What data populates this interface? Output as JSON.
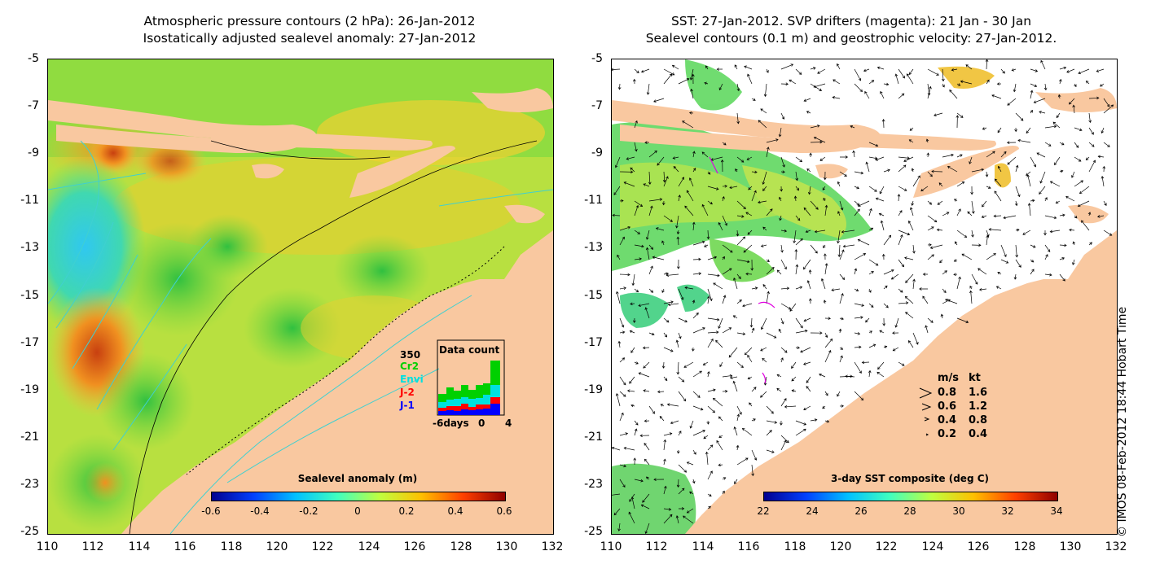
{
  "left_panel": {
    "title_line1": "Atmospheric pressure contours (2 hPa): 26-Jan-2012",
    "title_line2": "Isostatically adjusted sealevel anomaly: 27-Jan-2012",
    "colorbar": {
      "title": "Sealevel anomaly (m)",
      "ticks": [
        "-0.6",
        "-0.4",
        "-0.2",
        "0",
        "0.2",
        "0.4",
        "0.6"
      ],
      "colors": [
        "#00008f",
        "#0040ff",
        "#00c0ff",
        "#40ffbf",
        "#bfff40",
        "#ffc000",
        "#ff4000",
        "#8f0000"
      ]
    },
    "data_count": {
      "title": "Data count",
      "max_label": "350",
      "series": [
        {
          "name": "Cr2",
          "color": "#00d000"
        },
        {
          "name": "Envi",
          "color": "#00e0e0"
        },
        {
          "name": "J-2",
          "color": "#ff0000"
        },
        {
          "name": "J-1",
          "color": "#0000ff"
        }
      ],
      "x_labels": [
        "-6days",
        "0",
        "4"
      ]
    }
  },
  "right_panel": {
    "title_line1": "SST: 27-Jan-2012. SVP drifters (magenta): 21 Jan - 30 Jan",
    "title_line2": "Sealevel contours (0.1 m) and geostrophic velocity: 27-Jan-2012.",
    "colorbar": {
      "title": "3-day SST composite (deg C)",
      "ticks": [
        "22",
        "24",
        "26",
        "28",
        "30",
        "32",
        "34"
      ],
      "colors": [
        "#00008f",
        "#0040ff",
        "#00c0ff",
        "#40ffbf",
        "#bfff40",
        "#ffc000",
        "#ff4000",
        "#8f0000"
      ]
    },
    "velocity_legend": {
      "header_ms": "m/s",
      "header_kt": "kt",
      "rows": [
        {
          "ms": "0.8",
          "kt": "1.6"
        },
        {
          "ms": "0.6",
          "kt": "1.2"
        },
        {
          "ms": "0.4",
          "kt": "0.8"
        },
        {
          "ms": "0.2",
          "kt": "0.4"
        }
      ]
    }
  },
  "axes": {
    "y_ticks": [
      "-5",
      "-7",
      "-9",
      "-11",
      "-13",
      "-15",
      "-17",
      "-19",
      "-21",
      "-23",
      "-25"
    ],
    "x_ticks": [
      "110",
      "112",
      "114",
      "116",
      "118",
      "120",
      "122",
      "124",
      "126",
      "128",
      "130",
      "132"
    ]
  },
  "credit": "© IMOS 08-Feb-2012 18:44 Hobart Time",
  "colors": {
    "land": "#f9c8a0",
    "contour": "#40d0d0",
    "drifter": "#e000e0"
  }
}
